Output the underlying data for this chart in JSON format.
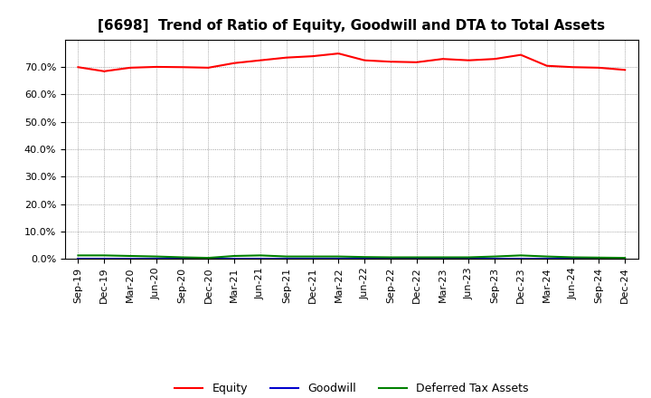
{
  "title": "[6698]  Trend of Ratio of Equity, Goodwill and DTA to Total Assets",
  "x_labels": [
    "Sep-19",
    "Dec-19",
    "Mar-20",
    "Jun-20",
    "Sep-20",
    "Dec-20",
    "Mar-21",
    "Jun-21",
    "Sep-21",
    "Dec-21",
    "Mar-22",
    "Jun-22",
    "Sep-22",
    "Dec-22",
    "Mar-23",
    "Jun-23",
    "Sep-23",
    "Dec-23",
    "Mar-24",
    "Jun-24",
    "Sep-24",
    "Dec-24"
  ],
  "equity": [
    70.0,
    68.5,
    69.8,
    70.1,
    70.0,
    69.8,
    71.5,
    72.5,
    73.5,
    74.0,
    75.0,
    72.5,
    72.0,
    71.8,
    73.0,
    72.5,
    73.0,
    74.5,
    70.5,
    70.0,
    69.8,
    69.0
  ],
  "goodwill": [
    0.0,
    0.0,
    0.0,
    0.0,
    0.0,
    0.0,
    0.0,
    0.0,
    0.0,
    0.0,
    0.0,
    0.0,
    0.0,
    0.0,
    0.0,
    0.0,
    0.0,
    0.0,
    0.0,
    0.0,
    0.0,
    0.0
  ],
  "dta": [
    1.2,
    1.2,
    1.0,
    0.8,
    0.5,
    0.3,
    1.0,
    1.2,
    0.8,
    0.8,
    0.8,
    0.6,
    0.5,
    0.5,
    0.5,
    0.5,
    0.8,
    1.2,
    0.8,
    0.5,
    0.4,
    0.3
  ],
  "equity_color": "#ff0000",
  "goodwill_color": "#0000cd",
  "dta_color": "#008000",
  "background_color": "#ffffff",
  "grid_color": "#888888",
  "ylim": [
    0,
    80
  ],
  "yticks": [
    0,
    10,
    20,
    30,
    40,
    50,
    60,
    70
  ],
  "legend_labels": [
    "Equity",
    "Goodwill",
    "Deferred Tax Assets"
  ],
  "title_fontsize": 11,
  "tick_fontsize": 8
}
